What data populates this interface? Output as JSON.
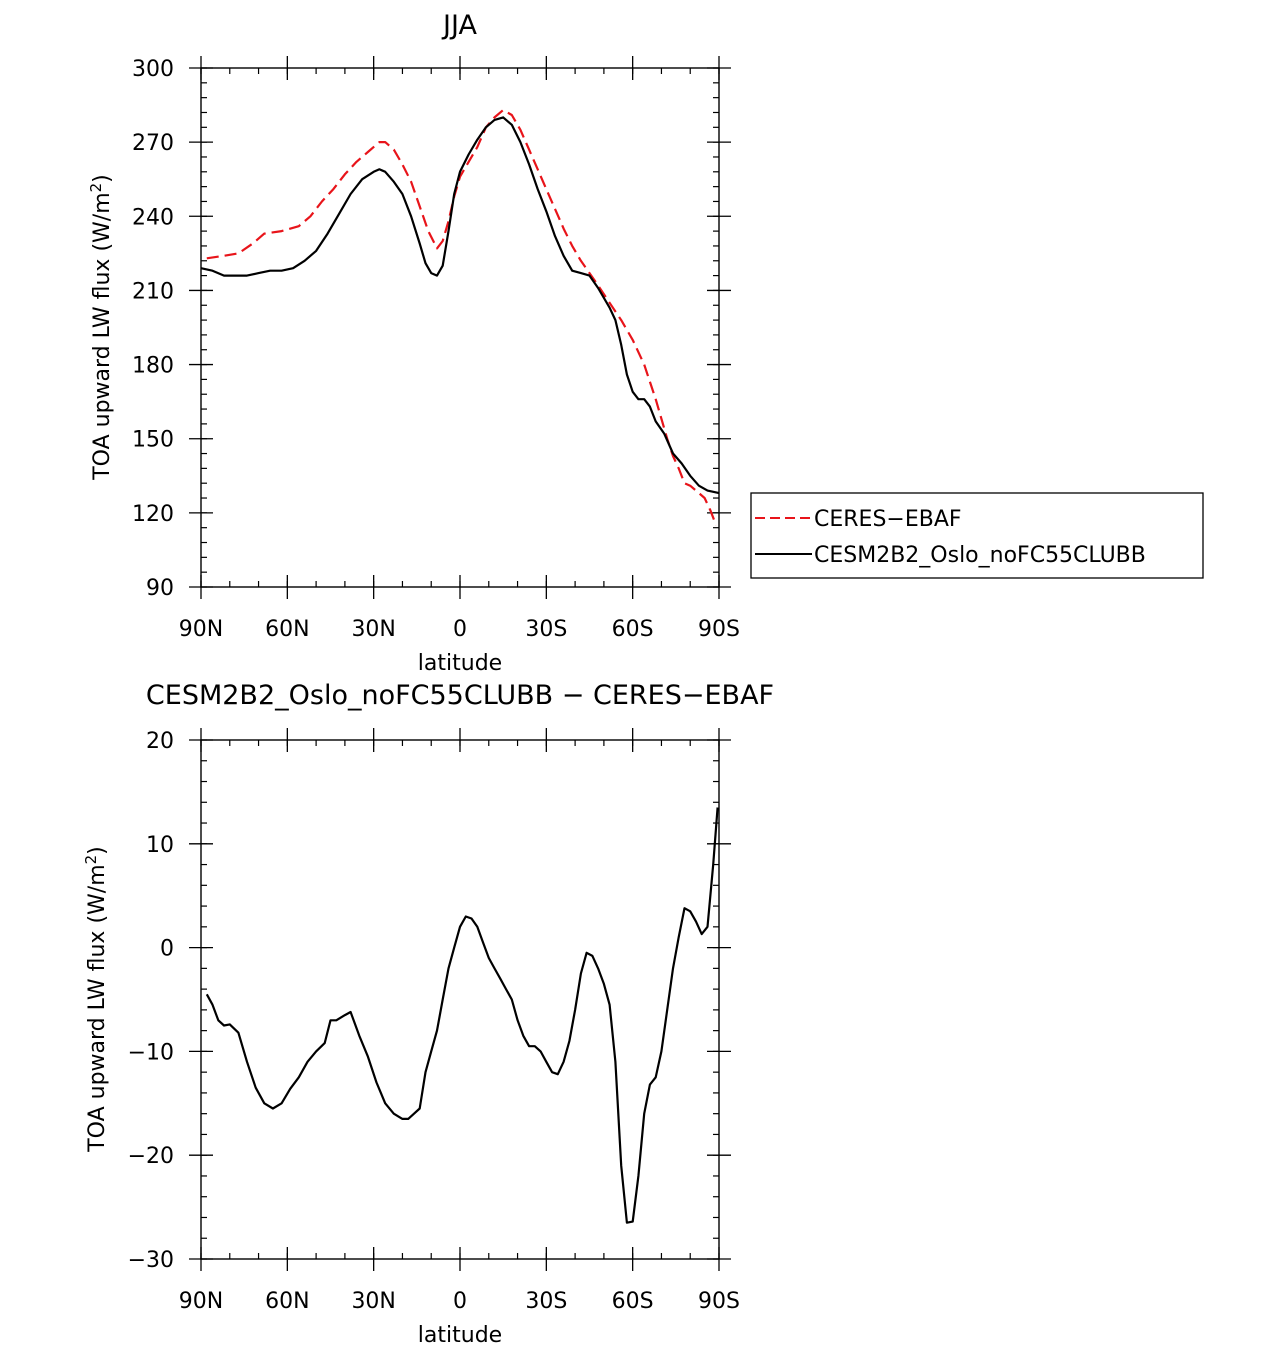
{
  "chart_data": [
    {
      "type": "line",
      "title": "JJA",
      "xlabel": "latitude",
      "ylabel": "TOA upward LW flux (W/m²)",
      "ylabel_parts": [
        "TOA upward LW flux (W/m",
        "2",
        ")"
      ],
      "xlim": [
        90,
        -90
      ],
      "ylim": [
        90,
        300
      ],
      "x_ticks": [
        90,
        60,
        30,
        0,
        -30,
        -60,
        -90
      ],
      "x_tick_labels": [
        "90N",
        "60N",
        "30N",
        "0",
        "30S",
        "60S",
        "90S"
      ],
      "y_ticks": [
        90,
        120,
        150,
        180,
        210,
        240,
        270,
        300
      ],
      "y_tick_labels": [
        "90",
        "120",
        "150",
        "180",
        "210",
        "240",
        "270",
        "300"
      ],
      "legend_position": "right",
      "series": [
        {
          "name": "CERES−EBAF",
          "color": "#e8141a",
          "dash": "dashed",
          "points": [
            [
              88,
              223
            ],
            [
              82,
              224
            ],
            [
              77,
              225
            ],
            [
              72,
              229
            ],
            [
              68,
              233
            ],
            [
              62,
              234
            ],
            [
              56,
              236
            ],
            [
              52,
              240
            ],
            [
              48,
              246
            ],
            [
              44,
              251
            ],
            [
              40,
              257
            ],
            [
              36,
              262
            ],
            [
              32,
              266
            ],
            [
              28,
              270
            ],
            [
              26,
              270
            ],
            [
              23,
              267
            ],
            [
              20,
              261
            ],
            [
              17,
              254
            ],
            [
              14,
              244
            ],
            [
              11,
              234
            ],
            [
              8,
              227
            ],
            [
              6,
              230
            ],
            [
              4,
              238
            ],
            [
              2,
              248
            ],
            [
              0,
              256
            ],
            [
              -3,
              262
            ],
            [
              -6,
              268
            ],
            [
              -9,
              276
            ],
            [
              -12,
              280
            ],
            [
              -15,
              283
            ],
            [
              -18,
              281
            ],
            [
              -21,
              275
            ],
            [
              -24,
              267
            ],
            [
              -27,
              259
            ],
            [
              -30,
              251
            ],
            [
              -33,
              243
            ],
            [
              -36,
              235
            ],
            [
              -39,
              228
            ],
            [
              -42,
              222
            ],
            [
              -45,
              217
            ],
            [
              -48,
              212
            ],
            [
              -52,
              205
            ],
            [
              -56,
              198
            ],
            [
              -60,
              190
            ],
            [
              -64,
              180
            ],
            [
              -68,
              166
            ],
            [
              -72,
              150
            ],
            [
              -74,
              143
            ],
            [
              -76,
              138
            ],
            [
              -78,
              132
            ],
            [
              -80,
              131
            ],
            [
              -82,
              129
            ],
            [
              -85,
              126
            ],
            [
              -87,
              121
            ],
            [
              -89,
              115
            ]
          ]
        },
        {
          "name": "CESM2B2_Oslo_noFC55CLUBB",
          "color": "#000000",
          "dash": "solid",
          "points": [
            [
              90,
              219
            ],
            [
              86,
              218
            ],
            [
              82,
              216
            ],
            [
              78,
              216
            ],
            [
              74,
              216
            ],
            [
              70,
              217
            ],
            [
              66,
              218
            ],
            [
              62,
              218
            ],
            [
              58,
              219
            ],
            [
              54,
              222
            ],
            [
              50,
              226
            ],
            [
              46,
              233
            ],
            [
              42,
              241
            ],
            [
              38,
              249
            ],
            [
              34,
              255
            ],
            [
              30,
              258
            ],
            [
              28,
              259
            ],
            [
              26,
              258
            ],
            [
              23,
              254
            ],
            [
              20,
              249
            ],
            [
              17,
              240
            ],
            [
              14,
              229
            ],
            [
              12,
              221
            ],
            [
              10,
              217
            ],
            [
              8,
              216
            ],
            [
              6,
              220
            ],
            [
              4,
              234
            ],
            [
              2,
              249
            ],
            [
              0,
              258
            ],
            [
              -3,
              265
            ],
            [
              -6,
              271
            ],
            [
              -9,
              276
            ],
            [
              -12,
              279
            ],
            [
              -15,
              280
            ],
            [
              -18,
              277
            ],
            [
              -21,
              270
            ],
            [
              -24,
              261
            ],
            [
              -27,
              251
            ],
            [
              -30,
              242
            ],
            [
              -33,
              232
            ],
            [
              -36,
              224
            ],
            [
              -39,
              218
            ],
            [
              -42,
              217
            ],
            [
              -45,
              216
            ],
            [
              -48,
              211
            ],
            [
              -52,
              203
            ],
            [
              -54,
              198
            ],
            [
              -56,
              188
            ],
            [
              -58,
              176
            ],
            [
              -60,
              169
            ],
            [
              -62,
              166
            ],
            [
              -64,
              166
            ],
            [
              -66,
              163
            ],
            [
              -68,
              157
            ],
            [
              -71,
              152
            ],
            [
              -74,
              144
            ],
            [
              -77,
              140
            ],
            [
              -80,
              135
            ],
            [
              -83,
              131
            ],
            [
              -86,
              129
            ],
            [
              -90,
              128
            ]
          ]
        }
      ]
    },
    {
      "type": "line",
      "title": "CESM2B2_Oslo_noFC55CLUBB − CERES−EBAF",
      "xlabel": "latitude",
      "ylabel": "TOA upward LW flux (W/m²)",
      "ylabel_parts": [
        "TOA upward LW flux (W/m",
        "2",
        ")"
      ],
      "xlim": [
        90,
        -90
      ],
      "ylim": [
        -30,
        20
      ],
      "x_ticks": [
        90,
        60,
        30,
        0,
        -30,
        -60,
        -90
      ],
      "x_tick_labels": [
        "90N",
        "60N",
        "30N",
        "0",
        "30S",
        "60S",
        "90S"
      ],
      "y_ticks": [
        -30,
        -20,
        -10,
        0,
        10,
        20
      ],
      "y_tick_labels": [
        "−30",
        "−20",
        "−10",
        "0",
        "10",
        "20"
      ],
      "series": [
        {
          "name": "",
          "color": "#000000",
          "dash": "solid",
          "points": [
            [
              88,
              -4.5
            ],
            [
              86,
              -5.5
            ],
            [
              84,
              -7
            ],
            [
              82,
              -7.5
            ],
            [
              80,
              -7.4
            ],
            [
              77,
              -8.2
            ],
            [
              74,
              -11
            ],
            [
              71,
              -13.5
            ],
            [
              68,
              -15
            ],
            [
              65,
              -15.5
            ],
            [
              62,
              -15
            ],
            [
              59,
              -13.6
            ],
            [
              56,
              -12.5
            ],
            [
              53,
              -11
            ],
            [
              50,
              -10
            ],
            [
              47,
              -9.2
            ],
            [
              45,
              -7
            ],
            [
              43,
              -7
            ],
            [
              40,
              -6.5
            ],
            [
              38,
              -6.2
            ],
            [
              35,
              -8.5
            ],
            [
              32,
              -10.5
            ],
            [
              29,
              -13
            ],
            [
              26,
              -15
            ],
            [
              23,
              -16
            ],
            [
              20,
              -16.5
            ],
            [
              18,
              -16.5
            ],
            [
              16,
              -16
            ],
            [
              14,
              -15.5
            ],
            [
              12,
              -12
            ],
            [
              10,
              -10
            ],
            [
              8,
              -8
            ],
            [
              6,
              -5
            ],
            [
              4,
              -2
            ],
            [
              2,
              0
            ],
            [
              0,
              2
            ],
            [
              -2,
              3
            ],
            [
              -4,
              2.8
            ],
            [
              -6,
              2
            ],
            [
              -8,
              0.5
            ],
            [
              -10,
              -1
            ],
            [
              -12,
              -2
            ],
            [
              -14,
              -3
            ],
            [
              -16,
              -4
            ],
            [
              -18,
              -5
            ],
            [
              -20,
              -7
            ],
            [
              -22,
              -8.5
            ],
            [
              -24,
              -9.5
            ],
            [
              -26,
              -9.5
            ],
            [
              -28,
              -10
            ],
            [
              -30,
              -11
            ],
            [
              -32,
              -12
            ],
            [
              -34,
              -12.2
            ],
            [
              -36,
              -11
            ],
            [
              -38,
              -9
            ],
            [
              -40,
              -6
            ],
            [
              -42,
              -2.5
            ],
            [
              -44,
              -0.5
            ],
            [
              -46,
              -0.8
            ],
            [
              -48,
              -2
            ],
            [
              -50,
              -3.5
            ],
            [
              -52,
              -5.5
            ],
            [
              -54,
              -11
            ],
            [
              -56,
              -21
            ],
            [
              -58,
              -26.5
            ],
            [
              -60,
              -26.4
            ],
            [
              -62,
              -22
            ],
            [
              -64,
              -16
            ],
            [
              -66,
              -13.2
            ],
            [
              -68,
              -12.5
            ],
            [
              -70,
              -10
            ],
            [
              -72,
              -6
            ],
            [
              -74,
              -2
            ],
            [
              -76,
              1
            ],
            [
              -78,
              3.8
            ],
            [
              -80,
              3.5
            ],
            [
              -82,
              2.5
            ],
            [
              -84,
              1.3
            ],
            [
              -86,
              2
            ],
            [
              -88,
              8
            ],
            [
              -89.5,
              13.5
            ]
          ]
        }
      ]
    }
  ]
}
